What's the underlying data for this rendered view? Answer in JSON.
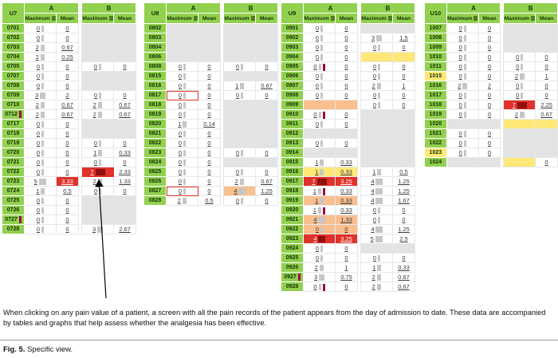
{
  "caption": {
    "text": "When clicking on any pain value of a patient, a screen with all the pain records of the patient appears from the day of admission to date. These data are accompanied by tables and graphs that help assess whether the analgesia has been effective.",
    "fig_label": "Fig. 5.",
    "fig_text": "Specific view."
  },
  "colors": {
    "green": "#92d050",
    "green_dark": "#4f7d1e",
    "red": "#e0312b",
    "orange": "#fabf8f",
    "yellow": "#ffe878",
    "gray": "#e3e3e3",
    "marker": "#9c0a44",
    "bar": "#c6c6c6"
  },
  "table": {
    "group_headers": [
      "A",
      "B"
    ],
    "col_headers": [
      "Maximum",
      "Mean"
    ]
  },
  "panels": [
    {
      "id": "U7",
      "rows": [
        {
          "label": "0701",
          "cells": [
            "0",
            "0",
            null,
            null
          ]
        },
        {
          "label": "0702",
          "cells": [
            "0",
            "0",
            null,
            null
          ]
        },
        {
          "label": "0703",
          "cells": [
            "2",
            "0.67",
            null,
            null
          ]
        },
        {
          "label": "0704",
          "cells": [
            "2",
            "0.25",
            null,
            null
          ]
        },
        {
          "label": "0705",
          "cells": [
            "0",
            "0",
            "0",
            "0"
          ]
        },
        {
          "label": "0707",
          "cells": [
            "0",
            "0",
            null,
            null
          ]
        },
        {
          "label": "0708",
          "cells": [
            "0",
            "0",
            null,
            null
          ]
        },
        {
          "label": "0709",
          "cells": [
            "3",
            "2",
            "0",
            "0"
          ]
        },
        {
          "label": "0710",
          "cells": [
            "2",
            "0.67",
            "2",
            "0.67"
          ]
        },
        {
          "label": "0712",
          "marker": 1,
          "cells": [
            "2",
            "0.67",
            "2",
            "0.67"
          ]
        },
        {
          "label": "0717",
          "cells": [
            "0",
            "0",
            null,
            null
          ]
        },
        {
          "label": "0718",
          "cells": [
            "0",
            "0",
            null,
            null
          ]
        },
        {
          "label": "0719",
          "cells": [
            "0",
            "0",
            "0",
            "0"
          ]
        },
        {
          "label": "0720",
          "cells": [
            "0",
            "0",
            "1",
            "0.33"
          ]
        },
        {
          "label": "0721",
          "cells": [
            "0",
            "0",
            "0",
            "0"
          ]
        },
        {
          "label": "0722",
          "cells": [
            "0",
            "0",
            {
              "v": "7",
              "bg": "red",
              "ol": 1
            },
            "2.33"
          ]
        },
        {
          "label": "0723",
          "cells": [
            "5",
            {
              "v": "3.33",
              "bg": "red"
            },
            "2",
            "1.33"
          ]
        },
        {
          "label": "0724",
          "cells": [
            "1",
            "0.5",
            "0",
            "0"
          ]
        },
        {
          "label": "0725",
          "cells": [
            "0",
            "0",
            null,
            null
          ]
        },
        {
          "label": "0726",
          "cells": [
            "0",
            "0",
            null,
            null
          ]
        },
        {
          "label": "0727",
          "marker": 1,
          "cells": [
            "0",
            "0",
            null,
            null
          ]
        },
        {
          "label": "0728",
          "cells": [
            "0",
            "0",
            "3",
            "2.67"
          ]
        }
      ]
    },
    {
      "id": "U8",
      "rows": [
        {
          "label": "0802",
          "cells": [
            null,
            null,
            null,
            null
          ]
        },
        {
          "label": "0803",
          "cells": [
            null,
            null,
            null,
            null
          ]
        },
        {
          "label": "0804",
          "cells": [
            null,
            null,
            null,
            null
          ]
        },
        {
          "label": "0806",
          "cells": [
            null,
            null,
            null,
            null
          ]
        },
        {
          "label": "0808",
          "cells": [
            "0",
            "0",
            "0",
            "0"
          ]
        },
        {
          "label": "0815",
          "cells": [
            "0",
            "0",
            null,
            null
          ]
        },
        {
          "label": "0816",
          "cells": [
            "0",
            "0",
            "1",
            "0.67"
          ]
        },
        {
          "label": "0817",
          "cells": [
            {
              "v": "0",
              "ol": 1
            },
            "0",
            "0",
            "0"
          ]
        },
        {
          "label": "0818",
          "cells": [
            "0",
            "0",
            null,
            null
          ]
        },
        {
          "label": "0819",
          "cells": [
            "0",
            "0",
            null,
            null
          ]
        },
        {
          "label": "0820",
          "cells": [
            "1",
            "0.14",
            null,
            null
          ]
        },
        {
          "label": "0821",
          "cells": [
            "0",
            "0",
            null,
            null
          ]
        },
        {
          "label": "0822",
          "cells": [
            "0",
            "0",
            null,
            null
          ]
        },
        {
          "label": "0823",
          "cells": [
            "0",
            "0",
            "0",
            "0"
          ]
        },
        {
          "label": "0824",
          "cells": [
            "0",
            "0",
            null,
            null
          ]
        },
        {
          "label": "0825",
          "cells": [
            "0",
            "0",
            "0",
            "0"
          ]
        },
        {
          "label": "0826",
          "cells": [
            "0",
            "0",
            "2",
            "0.67"
          ]
        },
        {
          "label": "0827",
          "cells": [
            {
              "v": "0",
              "ol": 1
            },
            "0",
            {
              "v": "4",
              "bg": "orange"
            },
            "1.25"
          ]
        },
        {
          "label": "0828",
          "cells": [
            "2",
            "0.5",
            "0",
            "0"
          ]
        }
      ]
    },
    {
      "id": "U9",
      "rows": [
        {
          "label": "0901",
          "cells": [
            "0",
            "0",
            null,
            null
          ]
        },
        {
          "label": "0902",
          "cells": [
            "0",
            "0",
            "3",
            "1.5"
          ]
        },
        {
          "label": "0903",
          "cells": [
            "0",
            "0",
            "0",
            "0"
          ]
        },
        {
          "label": "0904",
          "cells": [
            "0",
            "0",
            {
              "bg": "yellow"
            },
            {
              "bg": "yellow"
            }
          ]
        },
        {
          "label": "0905",
          "cells": [
            {
              "v": "0",
              "m": 1
            },
            "0",
            "0",
            "0"
          ]
        },
        {
          "label": "0906",
          "cells": [
            "0",
            "0",
            "0",
            "0"
          ]
        },
        {
          "label": "0907",
          "cells": [
            "0",
            "0",
            "2",
            "1"
          ]
        },
        {
          "label": "0908",
          "cells": [
            "0",
            "0",
            "0",
            "0"
          ]
        },
        {
          "label": "0909",
          "cells": [
            {
              "bg": "orange"
            },
            {
              "bg": "orange"
            },
            "0",
            "0"
          ]
        },
        {
          "label": "0910",
          "cells": [
            {
              "v": "0",
              "m": 1
            },
            "0",
            null,
            null
          ]
        },
        {
          "label": "0911",
          "cells": [
            "0",
            "0",
            null,
            null
          ]
        },
        {
          "label": "0912",
          "cells": [
            null,
            null,
            null,
            null
          ]
        },
        {
          "label": "0913",
          "cells": [
            "0",
            "0",
            null,
            null
          ]
        },
        {
          "label": "0914",
          "cells": [
            null,
            null,
            null,
            null
          ]
        },
        {
          "label": "0915",
          "cells": [
            "1",
            "0.33",
            null,
            null
          ]
        },
        {
          "label": "0916",
          "cells": [
            {
              "v": "1",
              "bg": "yellow"
            },
            {
              "v": "0.33",
              "bg": "yellow"
            },
            "1",
            "0.5"
          ]
        },
        {
          "label": "0917",
          "cells": [
            {
              "v": "7",
              "bg": "red"
            },
            {
              "v": "3.25",
              "bg": "red"
            },
            "4",
            "1.25"
          ]
        },
        {
          "label": "0918",
          "cells": [
            {
              "v": "1",
              "m": 1
            },
            "0.33",
            "4",
            "1.25"
          ]
        },
        {
          "label": "0919",
          "cells": [
            {
              "v": "1",
              "bg": "orange"
            },
            {
              "v": "0.33",
              "bg": "orange"
            },
            "4",
            "1.67"
          ]
        },
        {
          "label": "0920",
          "cells": [
            {
              "v": "1",
              "m": 1
            },
            "0.33",
            "0",
            "0"
          ]
        },
        {
          "label": "0921",
          "cells": [
            {
              "v": "4",
              "bg": "orange"
            },
            {
              "v": "1.33",
              "bg": "orange"
            },
            "0",
            "0"
          ]
        },
        {
          "label": "0922",
          "cells": [
            {
              "v": "0",
              "bg": "orange"
            },
            {
              "v": "0",
              "bg": "orange"
            },
            "4",
            "1.25"
          ]
        },
        {
          "label": "0923",
          "cells": [
            {
              "v": "4",
              "bg": "red"
            },
            {
              "v": "3.25",
              "bg": "red"
            },
            "5",
            "2.5"
          ]
        },
        {
          "label": "0924",
          "cells": [
            "0",
            "0",
            null,
            null
          ]
        },
        {
          "label": "0925",
          "cells": [
            "0",
            "0",
            "0",
            "0"
          ]
        },
        {
          "label": "0926",
          "cells": [
            "2",
            "1",
            "1",
            "0.33"
          ]
        },
        {
          "label": "0927",
          "marker": 1,
          "cells": [
            "3",
            "0.75",
            "2",
            "0.67"
          ]
        },
        {
          "label": "0928",
          "cells": [
            {
              "v": "0",
              "m": 1
            },
            "0",
            "2",
            "0.67"
          ]
        }
      ]
    },
    {
      "id": "U10",
      "rows": [
        {
          "label": "1007",
          "cells": [
            "0",
            "0",
            null,
            null
          ]
        },
        {
          "label": "1008",
          "cells": [
            "0",
            "0",
            null,
            null
          ]
        },
        {
          "label": "1009",
          "cells": [
            "0",
            "0",
            null,
            null
          ]
        },
        {
          "label": "1010",
          "cells": [
            "0",
            "0",
            "0",
            "0"
          ]
        },
        {
          "label": "1011",
          "cells": [
            "0",
            "0",
            "0",
            "0"
          ]
        },
        {
          "label": "1015",
          "labelBg": "yellow",
          "cells": [
            "0",
            "0",
            "2",
            "1"
          ]
        },
        {
          "label": "1016",
          "cells": [
            "2",
            "2",
            "0",
            "0"
          ]
        },
        {
          "label": "1017",
          "cells": [
            "0",
            "0",
            "0",
            "0"
          ]
        },
        {
          "label": "1018",
          "cells": [
            "0",
            "0",
            {
              "v": "7",
              "bg": "red"
            },
            "2.25"
          ]
        },
        {
          "label": "1019",
          "cells": [
            "0",
            "0",
            "2",
            "0.67"
          ]
        },
        {
          "label": "1020",
          "cells": [
            null,
            null,
            {
              "bg": "yellow"
            },
            {
              "bg": "yellow"
            }
          ]
        },
        {
          "label": "1021",
          "cells": [
            "0",
            "0",
            null,
            null
          ]
        },
        {
          "label": "1022",
          "cells": [
            "0",
            "0",
            null,
            null
          ]
        },
        {
          "label": "1023",
          "labelBg": "yellow",
          "cells": [
            "0",
            "0",
            null,
            null
          ]
        },
        {
          "label": "1024",
          "cells": [
            null,
            null,
            {
              "bg": "yellow"
            },
            "0"
          ]
        }
      ]
    }
  ]
}
